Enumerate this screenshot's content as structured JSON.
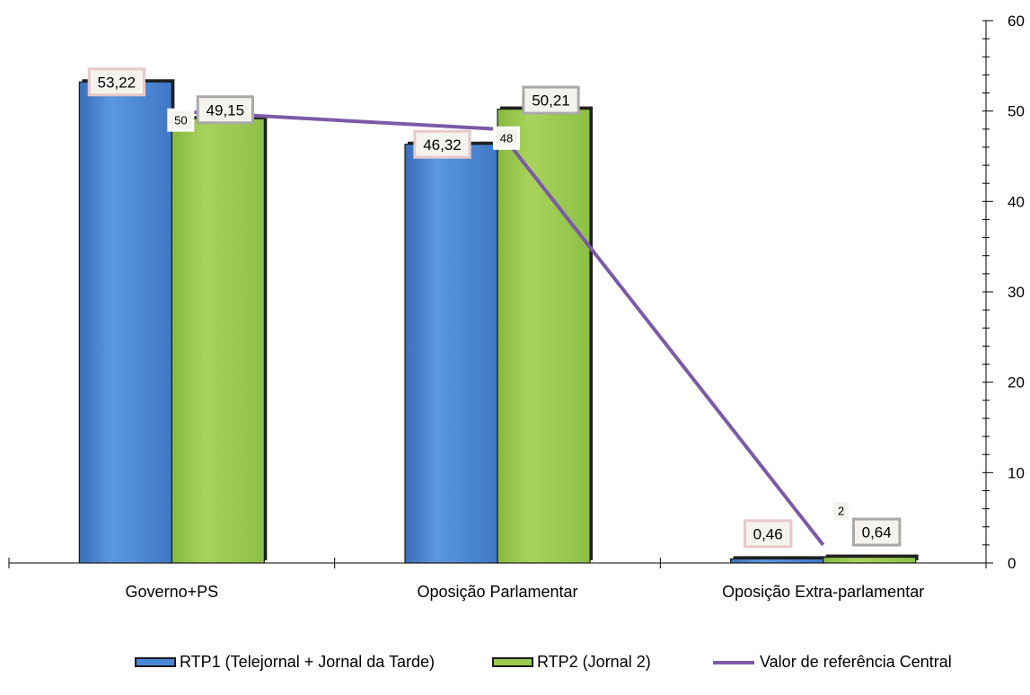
{
  "colors": {
    "rtp1": "#4a86d6",
    "rtp2": "#9ac94e",
    "line": "#7b5aa6"
  },
  "chart_data": {
    "type": "bar",
    "categories": [
      "Governo+PS",
      "Oposição Parlamentar",
      "Oposição Extra-parlamentar"
    ],
    "series": [
      {
        "name": "RTP1 (Telejornal + Jornal da Tarde)",
        "type": "bar",
        "values": [
          53.22,
          46.32,
          0.46
        ],
        "labels": [
          "53,22",
          "46,32",
          "0,46"
        ]
      },
      {
        "name": "RTP2 (Jornal 2)",
        "type": "bar",
        "values": [
          49.15,
          50.21,
          0.64
        ],
        "labels": [
          "49,15",
          "50,21",
          "0,64"
        ]
      },
      {
        "name": "Valor de referência Central",
        "type": "line",
        "values": [
          50,
          48,
          2
        ],
        "labels": [
          "50",
          "48",
          "2"
        ]
      }
    ],
    "yaxis": {
      "position": "right",
      "min": 0,
      "max": 60,
      "major_step": 10,
      "minor_step": 2,
      "tick_labels": [
        "0",
        "10",
        "20",
        "30",
        "40",
        "50",
        "60"
      ]
    },
    "legend_position": "bottom",
    "grid": false
  }
}
